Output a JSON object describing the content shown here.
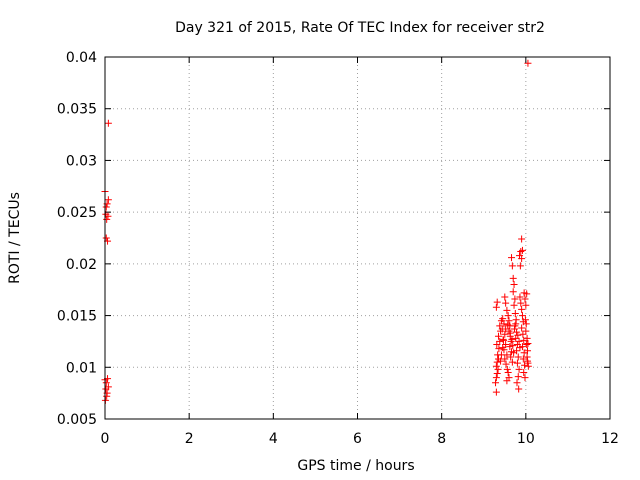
{
  "chart_data": {
    "type": "scatter",
    "title": "Day 321 of 2015, Rate Of TEC Index for receiver str2",
    "xlabel": "GPS time / hours",
    "ylabel": "ROTI / TECUs",
    "xlim": [
      0,
      12
    ],
    "ylim": [
      0.005,
      0.04
    ],
    "x_ticks": [
      0,
      2,
      4,
      6,
      8,
      10,
      12
    ],
    "x_tick_labels": [
      "0",
      "2",
      "4",
      "6",
      "8",
      "10",
      "12"
    ],
    "y_ticks": [
      0.005,
      0.01,
      0.015,
      0.02,
      0.025,
      0.03,
      0.035,
      0.04
    ],
    "y_tick_labels": [
      "0.005",
      "0.01",
      "0.015",
      "0.02",
      "0.025",
      "0.03",
      "0.035",
      "0.04"
    ],
    "grid": true,
    "marker": "plus",
    "color": "#ff0000",
    "series": [
      {
        "points": [
          [
            0.0,
            0.027
          ],
          [
            0.03,
            0.0255
          ],
          [
            0.05,
            0.0258
          ],
          [
            0.08,
            0.0262
          ],
          [
            0.02,
            0.0248
          ],
          [
            0.04,
            0.0243
          ],
          [
            0.07,
            0.0246
          ],
          [
            0.03,
            0.0225
          ],
          [
            0.06,
            0.0222
          ],
          [
            0.08,
            0.0336
          ],
          [
            0.0,
            0.0088
          ],
          [
            0.03,
            0.0085
          ],
          [
            0.06,
            0.0089
          ],
          [
            0.02,
            0.0079
          ],
          [
            0.05,
            0.0075
          ],
          [
            0.08,
            0.0081
          ],
          [
            0.01,
            0.0068
          ],
          [
            0.04,
            0.0072
          ],
          [
            10.05,
            0.0394
          ],
          [
            9.3,
            0.0076
          ],
          [
            9.28,
            0.0085
          ],
          [
            9.3,
            0.009
          ],
          [
            9.32,
            0.0094
          ],
          [
            9.34,
            0.0098
          ],
          [
            9.3,
            0.0101
          ],
          [
            9.32,
            0.0105
          ],
          [
            9.35,
            0.0108
          ],
          [
            9.33,
            0.0112
          ],
          [
            9.36,
            0.0118
          ],
          [
            9.31,
            0.0122
          ],
          [
            9.38,
            0.0125
          ],
          [
            9.35,
            0.013
          ],
          [
            9.4,
            0.0135
          ],
          [
            9.38,
            0.014
          ],
          [
            9.42,
            0.0145
          ],
          [
            9.3,
            0.0158
          ],
          [
            9.32,
            0.0163
          ],
          [
            9.45,
            0.0147
          ],
          [
            9.48,
            0.0142
          ],
          [
            9.44,
            0.0137
          ],
          [
            9.5,
            0.0132
          ],
          [
            9.46,
            0.0127
          ],
          [
            9.52,
            0.0122
          ],
          [
            9.48,
            0.0117
          ],
          [
            9.55,
            0.0112
          ],
          [
            9.5,
            0.0108
          ],
          [
            9.53,
            0.0103
          ],
          [
            9.56,
            0.0098
          ],
          [
            9.58,
            0.0095
          ],
          [
            9.5,
            0.0168
          ],
          [
            9.52,
            0.0162
          ],
          [
            9.55,
            0.0155
          ],
          [
            9.58,
            0.015
          ],
          [
            9.6,
            0.0145
          ],
          [
            9.62,
            0.014
          ],
          [
            9.6,
            0.0135
          ],
          [
            9.63,
            0.013
          ],
          [
            9.65,
            0.0125
          ],
          [
            9.62,
            0.012
          ],
          [
            9.66,
            0.0115
          ],
          [
            9.64,
            0.011
          ],
          [
            9.68,
            0.0105
          ],
          [
            9.55,
            0.0087
          ],
          [
            9.6,
            0.009
          ],
          [
            9.66,
            0.0206
          ],
          [
            9.68,
            0.0198
          ],
          [
            9.7,
            0.0186
          ],
          [
            9.72,
            0.018
          ],
          [
            9.7,
            0.0173
          ],
          [
            9.74,
            0.0166
          ],
          [
            9.72,
            0.016
          ],
          [
            9.75,
            0.0152
          ],
          [
            9.77,
            0.0146
          ],
          [
            9.74,
            0.014
          ],
          [
            9.78,
            0.0134
          ],
          [
            9.76,
            0.0128
          ],
          [
            9.8,
            0.0122
          ],
          [
            9.78,
            0.0116
          ],
          [
            9.82,
            0.011
          ],
          [
            9.8,
            0.0104
          ],
          [
            9.84,
            0.0098
          ],
          [
            9.82,
            0.0091
          ],
          [
            9.79,
            0.0085
          ],
          [
            9.83,
            0.0079
          ],
          [
            9.85,
            0.0208
          ],
          [
            9.88,
            0.0212
          ],
          [
            9.9,
            0.0205
          ],
          [
            9.87,
            0.0198
          ],
          [
            9.9,
            0.0224
          ],
          [
            9.92,
            0.0213
          ],
          [
            9.86,
            0.0168
          ],
          [
            9.88,
            0.0162
          ],
          [
            9.9,
            0.0156
          ],
          [
            9.92,
            0.015
          ],
          [
            9.94,
            0.0144
          ],
          [
            9.9,
            0.0138
          ],
          [
            9.93,
            0.0132
          ],
          [
            9.95,
            0.0126
          ],
          [
            9.92,
            0.012
          ],
          [
            9.96,
            0.0114
          ],
          [
            9.94,
            0.0108
          ],
          [
            9.97,
            0.0102
          ],
          [
            9.95,
            0.0095
          ],
          [
            9.98,
            0.009
          ],
          [
            9.96,
            0.0172
          ],
          [
            9.98,
            0.0166
          ],
          [
            10.0,
            0.016
          ],
          [
            10.02,
            0.0171
          ],
          [
            9.99,
            0.0146
          ],
          [
            10.01,
            0.0142
          ],
          [
            10.0,
            0.0135
          ],
          [
            10.03,
            0.0128
          ],
          [
            10.02,
            0.0122
          ],
          [
            10.04,
            0.0116
          ],
          [
            10.03,
            0.011
          ],
          [
            10.05,
            0.0104
          ],
          [
            10.06,
            0.0101
          ],
          [
            10.04,
            0.0106
          ],
          [
            10.05,
            0.0123
          ],
          [
            9.4,
            0.0106
          ],
          [
            9.42,
            0.0112
          ],
          [
            9.45,
            0.0119
          ],
          [
            9.47,
            0.0126
          ],
          [
            9.52,
            0.0137
          ],
          [
            9.57,
            0.0141
          ],
          [
            9.63,
            0.0133
          ],
          [
            9.67,
            0.0127
          ],
          [
            9.69,
            0.0121
          ],
          [
            9.71,
            0.0114
          ],
          [
            9.73,
            0.0137
          ],
          [
            9.76,
            0.0142
          ],
          [
            9.81,
            0.0131
          ],
          [
            9.84,
            0.0125
          ],
          [
            9.86,
            0.0119
          ]
        ]
      }
    ]
  }
}
